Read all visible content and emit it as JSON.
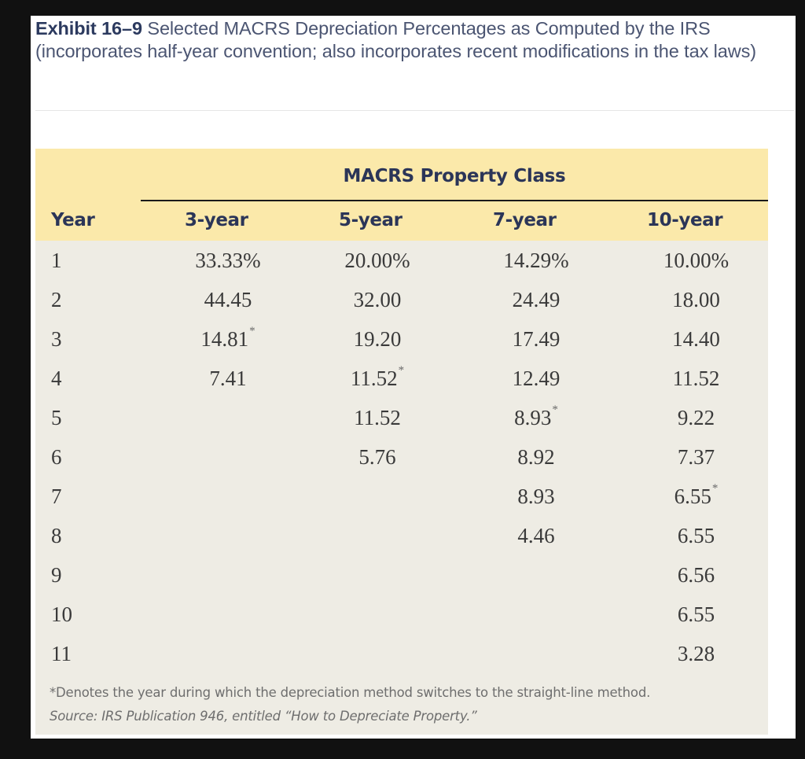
{
  "exhibit": {
    "label": "Exhibit 16–9",
    "title": " Selected MACRS Depreciation Percentages as Computed by the IRS (incorporates half-year convention; also incorporates recent modifications in the tax laws)"
  },
  "table": {
    "group_header": "MACRS Property Class",
    "columns": [
      "Year",
      "3-year",
      "5-year",
      "7-year",
      "10-year"
    ],
    "rows": [
      {
        "year": "1",
        "c3": "33.33%",
        "c3_star": "",
        "c5": "20.00%",
        "c5_star": "",
        "c7": "14.29%",
        "c7_star": "",
        "c10": "10.00%",
        "c10_star": ""
      },
      {
        "year": "2",
        "c3": "44.45",
        "c3_star": "",
        "c5": "32.00",
        "c5_star": "",
        "c7": "24.49",
        "c7_star": "",
        "c10": "18.00",
        "c10_star": ""
      },
      {
        "year": "3",
        "c3": "14.81",
        "c3_star": "*",
        "c5": "19.20",
        "c5_star": "",
        "c7": "17.49",
        "c7_star": "",
        "c10": "14.40",
        "c10_star": ""
      },
      {
        "year": "4",
        "c3": "7.41",
        "c3_star": "",
        "c5": "11.52",
        "c5_star": "*",
        "c7": "12.49",
        "c7_star": "",
        "c10": "11.52",
        "c10_star": ""
      },
      {
        "year": "5",
        "c3": "",
        "c3_star": "",
        "c5": "11.52",
        "c5_star": "",
        "c7": "8.93",
        "c7_star": "*",
        "c10": "9.22",
        "c10_star": ""
      },
      {
        "year": "6",
        "c3": "",
        "c3_star": "",
        "c5": "5.76",
        "c5_star": "",
        "c7": "8.92",
        "c7_star": "",
        "c10": "7.37",
        "c10_star": ""
      },
      {
        "year": "7",
        "c3": "",
        "c3_star": "",
        "c5": "",
        "c5_star": "",
        "c7": "8.93",
        "c7_star": "",
        "c10": "6.55",
        "c10_star": "*"
      },
      {
        "year": "8",
        "c3": "",
        "c3_star": "",
        "c5": "",
        "c5_star": "",
        "c7": "4.46",
        "c7_star": "",
        "c10": "6.55",
        "c10_star": ""
      },
      {
        "year": "9",
        "c3": "",
        "c3_star": "",
        "c5": "",
        "c5_star": "",
        "c7": "",
        "c7_star": "",
        "c10": "6.56",
        "c10_star": ""
      },
      {
        "year": "10",
        "c3": "",
        "c3_star": "",
        "c5": "",
        "c5_star": "",
        "c7": "",
        "c7_star": "",
        "c10": "6.55",
        "c10_star": ""
      },
      {
        "year": "11",
        "c3": "",
        "c3_star": "",
        "c5": "",
        "c5_star": "",
        "c7": "",
        "c7_star": "",
        "c10": "3.28",
        "c10_star": ""
      }
    ],
    "footnote": "*Denotes the year during which the depreciation method switches to the straight-line method.",
    "source": "Source: IRS Publication 946, entitled “How to Depreciate Property.”"
  },
  "colors": {
    "background": "#111111",
    "page": "#ffffff",
    "header_fill": "#fbe9aa",
    "body_fill": "#eeece4",
    "heading_text": "#2b3558"
  }
}
